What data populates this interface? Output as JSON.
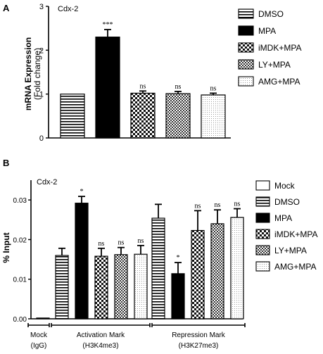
{
  "chart_data": [
    {
      "panel_label": "A",
      "type": "bar",
      "title": "Cdx-2",
      "ylabel": "mRNA Expression",
      "ylabel2": "(Fold change)",
      "ylim": [
        0,
        3
      ],
      "yticks": [
        "0",
        "1",
        "2",
        "3"
      ],
      "categories": [
        "DMSO",
        "MPA",
        "iMDK+MPA",
        "LY+MPA",
        "AMG+MPA"
      ],
      "values": [
        1.0,
        2.3,
        1.02,
        1.01,
        0.98
      ],
      "errors": [
        0.0,
        0.17,
        0.05,
        0.05,
        0.04
      ],
      "significance": [
        "",
        "***",
        "ns",
        "ns",
        "ns"
      ],
      "patterns": [
        "hstripe",
        "solid",
        "check",
        "check2",
        "dots"
      ],
      "legend": [
        "DMSO",
        "MPA",
        "iMDK+MPA",
        "LY+MPA",
        "AMG+MPA"
      ],
      "legend_position": "right",
      "grid": false
    },
    {
      "panel_label": "B",
      "type": "bar",
      "title": "Cdx-2",
      "ylabel": "% Input",
      "ylim": [
        0,
        0.035
      ],
      "yticks": [
        "0.00",
        "0.01",
        "0.02",
        "0.03"
      ],
      "groups": [
        {
          "label": "Mock",
          "sublabel": "(IgG)",
          "bars": [
            {
              "pattern": "open",
              "value": 0.0002,
              "error": 0,
              "sig": ""
            }
          ]
        },
        {
          "label": "Activation Mark",
          "sublabel": "(H3K4me3)",
          "bars": [
            {
              "pattern": "hstripe",
              "value": 0.016,
              "error": 0.0018,
              "sig": ""
            },
            {
              "pattern": "solid",
              "value": 0.0292,
              "error": 0.0017,
              "sig": "*"
            },
            {
              "pattern": "check",
              "value": 0.0158,
              "error": 0.002,
              "sig": "ns"
            },
            {
              "pattern": "check2",
              "value": 0.0162,
              "error": 0.0018,
              "sig": "ns"
            },
            {
              "pattern": "dots",
              "value": 0.0163,
              "error": 0.0022,
              "sig": "ns"
            }
          ]
        },
        {
          "label": "Repression Mark",
          "sublabel": "(H3K27me3)",
          "bars": [
            {
              "pattern": "hstripe",
              "value": 0.0254,
              "error": 0.0035,
              "sig": ""
            },
            {
              "pattern": "solid",
              "value": 0.0114,
              "error": 0.0028,
              "sig": "*"
            },
            {
              "pattern": "check",
              "value": 0.0223,
              "error": 0.005,
              "sig": "ns"
            },
            {
              "pattern": "check2",
              "value": 0.024,
              "error": 0.0035,
              "sig": "ns"
            },
            {
              "pattern": "dots",
              "value": 0.0256,
              "error": 0.0022,
              "sig": "ns"
            }
          ]
        }
      ],
      "legend": [
        "Mock",
        "DMSO",
        "MPA",
        "iMDK+MPA",
        "LY+MPA",
        "AMG+MPA"
      ],
      "legend_patterns": [
        "open",
        "hstripe",
        "solid",
        "check",
        "check2",
        "dots"
      ],
      "legend_position": "right",
      "grid": false
    }
  ]
}
